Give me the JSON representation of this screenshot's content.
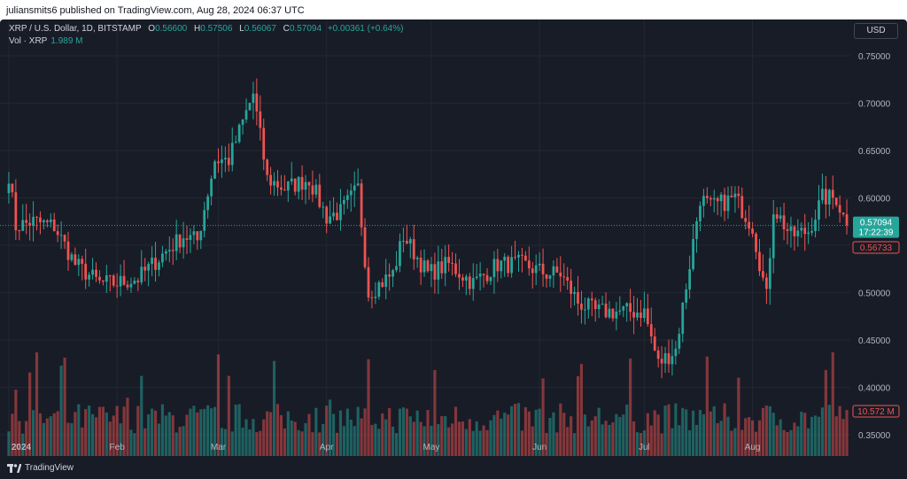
{
  "header": {
    "publisher_text": "juliansmits6 published on TradingView.com, Aug 28, 2024 06:37 UTC"
  },
  "legend": {
    "symbol": "XRP / U.S. Dollar, 1D, BITSTAMP",
    "open_label": "O",
    "open": "0.56600",
    "high_label": "H",
    "high": "0.57506",
    "low_label": "L",
    "low": "0.56067",
    "close_label": "C",
    "close": "0.57094",
    "change": "+0.00361 (+0.64%)",
    "vol_label": "Vol · XRP",
    "vol_value": "1.989 M"
  },
  "currency_button": "USD",
  "price_tags": {
    "last": "0.57094",
    "countdown": "17:22:39",
    "prev": "0.56733",
    "volume": "10.572 M"
  },
  "footer": {
    "brand": "TradingView"
  },
  "colors": {
    "up": "#26a69a",
    "down": "#ef5350",
    "bg": "#181c27",
    "grid": "#242733",
    "text": "#b2b5be"
  },
  "chart_data": {
    "type": "candlestick",
    "symbol": "XRP / U.S. Dollar",
    "interval": "1D",
    "ylim": [
      0.35,
      0.75
    ],
    "y_ticks": [
      "0.75000",
      "0.70000",
      "0.65000",
      "0.60000",
      "0.55000",
      "0.50000",
      "0.45000",
      "0.40000",
      "0.35000"
    ],
    "x_ticks": [
      "2024",
      "Feb",
      "Mar",
      "Apr",
      "May",
      "Jun",
      "Jul",
      "Aug"
    ],
    "last_price": 0.57094,
    "anchors": [
      [
        "2024-01-01",
        0.625
      ],
      [
        "2024-01-03",
        0.57
      ],
      [
        "2024-01-08",
        0.575
      ],
      [
        "2024-01-14",
        0.57
      ],
      [
        "2024-01-20",
        0.53
      ],
      [
        "2024-01-27",
        0.51
      ],
      [
        "2024-02-01",
        0.51
      ],
      [
        "2024-02-07",
        0.515
      ],
      [
        "2024-02-14",
        0.54
      ],
      [
        "2024-02-20",
        0.56
      ],
      [
        "2024-02-24",
        0.555
      ],
      [
        "2024-02-29",
        0.64
      ],
      [
        "2024-03-04",
        0.64
      ],
      [
        "2024-03-11",
        0.71
      ],
      [
        "2024-03-15",
        0.62
      ],
      [
        "2024-03-20",
        0.61
      ],
      [
        "2024-03-27",
        0.62
      ],
      [
        "2024-04-01",
        0.58
      ],
      [
        "2024-04-05",
        0.585
      ],
      [
        "2024-04-10",
        0.61
      ],
      [
        "2024-04-13",
        0.5
      ],
      [
        "2024-04-20",
        0.52
      ],
      [
        "2024-04-23",
        0.56
      ],
      [
        "2024-04-30",
        0.52
      ],
      [
        "2024-05-06",
        0.53
      ],
      [
        "2024-05-13",
        0.51
      ],
      [
        "2024-05-20",
        0.53
      ],
      [
        "2024-05-27",
        0.53
      ],
      [
        "2024-06-03",
        0.52
      ],
      [
        "2024-06-07",
        0.52
      ],
      [
        "2024-06-12",
        0.49
      ],
      [
        "2024-06-17",
        0.48
      ],
      [
        "2024-06-24",
        0.48
      ],
      [
        "2024-07-01",
        0.48
      ],
      [
        "2024-07-05",
        0.425
      ],
      [
        "2024-07-10",
        0.44
      ],
      [
        "2024-07-14",
        0.53
      ],
      [
        "2024-07-17",
        0.6
      ],
      [
        "2024-07-20",
        0.59
      ],
      [
        "2024-07-27",
        0.6
      ],
      [
        "2024-08-01",
        0.57
      ],
      [
        "2024-08-05",
        0.495
      ],
      [
        "2024-08-07",
        0.59
      ],
      [
        "2024-08-12",
        0.56
      ],
      [
        "2024-08-17",
        0.565
      ],
      [
        "2024-08-21",
        0.6
      ],
      [
        "2024-08-25",
        0.6
      ],
      [
        "2024-08-28",
        0.57094
      ]
    ]
  }
}
